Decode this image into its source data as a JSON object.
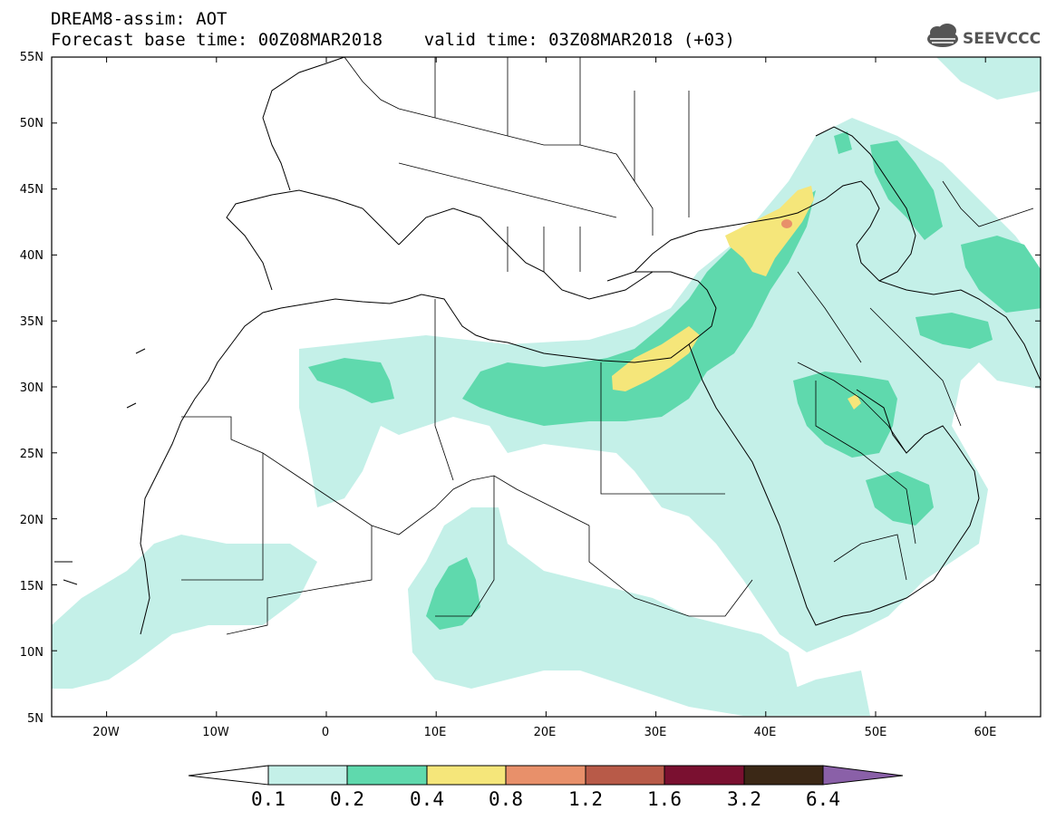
{
  "header": {
    "line1": "DREAM8-assim: AOT",
    "line2": "Forecast base time: 00Z08MAR2018    valid time: 03Z08MAR2018 (+03)"
  },
  "logo": {
    "text": "SEEVCCC",
    "icon": "cloud-icon"
  },
  "map": {
    "lat_ticks": [
      "55N",
      "50N",
      "45N",
      "40N",
      "35N",
      "30N",
      "25N",
      "20N",
      "15N",
      "10N",
      "5N"
    ],
    "lon_ticks": [
      "20W",
      "10W",
      "0",
      "10E",
      "20E",
      "30E",
      "40E",
      "50E",
      "60E"
    ],
    "extent": {
      "lon_min": -25,
      "lon_max": 65,
      "lat_min": 5,
      "lat_max": 55
    }
  },
  "colorbar": {
    "labels": [
      "0.1",
      "0.2",
      "0.4",
      "0.8",
      "1.2",
      "1.6",
      "3.2",
      "6.4"
    ],
    "colors": [
      "#c4f0e8",
      "#5fd9ad",
      "#f5e67a",
      "#e8906a",
      "#b85a48",
      "#7a1030",
      "#3b2816",
      "#8a60a8"
    ]
  }
}
